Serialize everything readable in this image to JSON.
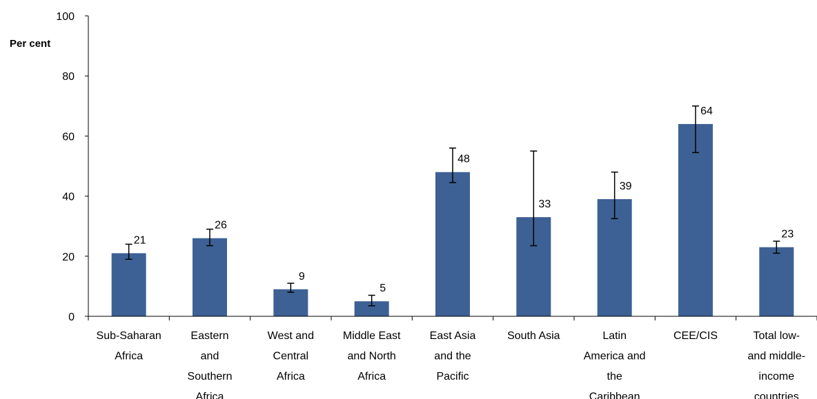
{
  "chart_data": {
    "type": "bar",
    "title": "",
    "xlabel": "",
    "ylabel": "Per cent",
    "ylim": [
      0,
      100
    ],
    "yticks": [
      0,
      20,
      40,
      60,
      80,
      100
    ],
    "grid": false,
    "legend": "none",
    "bar_color": "#3d6194",
    "categories": [
      [
        "Sub-Saharan",
        "Africa"
      ],
      [
        "Eastern",
        "and",
        "Southern",
        "Africa"
      ],
      [
        "West and",
        "Central",
        "Africa"
      ],
      [
        "Middle East",
        "and North",
        "Africa"
      ],
      [
        "East Asia",
        "and the",
        "Pacific"
      ],
      [
        "South Asia"
      ],
      [
        "Latin",
        "America and",
        "the",
        "Caribbean"
      ],
      [
        "CEE/CIS"
      ],
      [
        "Total low-",
        "and middle-",
        "income",
        "countries"
      ]
    ],
    "values": [
      21,
      26,
      9,
      5,
      48,
      33,
      39,
      64,
      23
    ],
    "error_low": [
      19,
      23.5,
      8,
      3.5,
      44.5,
      23.5,
      32.5,
      54.5,
      21
    ],
    "error_high": [
      24,
      29,
      11,
      7,
      56,
      55,
      48,
      70,
      25
    ]
  }
}
